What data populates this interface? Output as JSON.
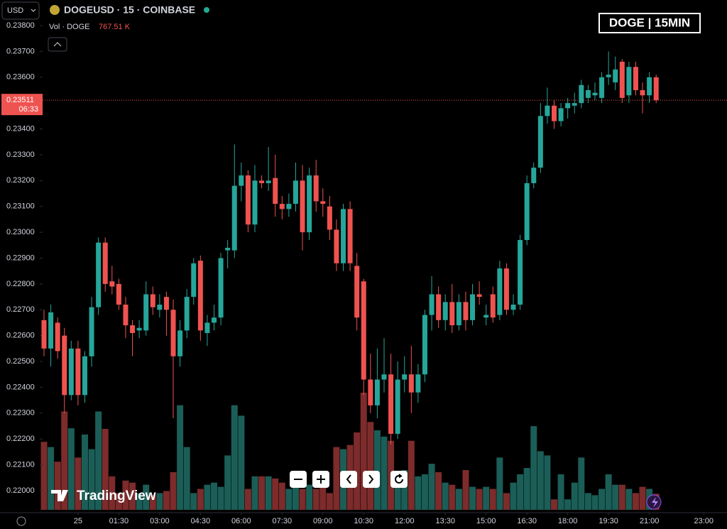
{
  "currency": "USD",
  "symbol": "DOGEUSD · 15 · COINBASE",
  "volume_label": "Vol · DOGE",
  "volume_legend": "767.51 K",
  "brand": "TradingView",
  "countdown": "06:33",
  "chart_data": {
    "type": "candlestick",
    "title": "DOGE | 15MIN",
    "up_color": "#26a69a",
    "down_color": "#ef5350",
    "volume_up_color": "#1b5e57",
    "volume_down_color": "#7d2b2b",
    "current_price": {
      "value": 0.23511,
      "label": "0.23511"
    },
    "open": [
      0.2266,
      0.2255,
      0.2265,
      0.226,
      0.2237,
      0.2255,
      0.2237,
      0.2252,
      0.2271,
      0.2296,
      0.2281,
      0.228,
      0.2272,
      0.2264,
      0.2262,
      0.2262,
      0.2276,
      0.227,
      0.2275,
      0.227,
      0.2252,
      0.2262,
      0.2275,
      0.2289,
      0.2261,
      0.2265,
      0.2267,
      0.2293,
      0.2293,
      0.2318,
      0.2322,
      0.2303,
      0.232,
      0.2319,
      0.2321,
      0.2311,
      0.2309,
      0.2311,
      0.232,
      0.23,
      0.2322,
      0.2312,
      0.231,
      0.2301,
      0.2288,
      0.2309,
      0.2287,
      0.2281,
      0.2243,
      0.2233,
      0.2243,
      0.2245,
      0.2222,
      0.2243,
      0.2245,
      0.2238,
      0.2245,
      0.2268,
      0.2276,
      0.2266,
      0.2273,
      0.2264,
      0.2273,
      0.2266,
      0.2276,
      0.2267,
      0.2276,
      0.2268,
      0.2286,
      0.227,
      0.2272,
      0.2297,
      0.2319,
      0.2325,
      0.2345,
      0.2349,
      0.2343,
      0.2348,
      0.2349,
      0.235,
      0.2352,
      0.2353,
      0.2352,
      0.236,
      0.2358,
      0.2366,
      0.2353,
      0.2364,
      0.2355,
      0.2353,
      0.236
    ],
    "high": [
      0.227,
      0.2272,
      0.2267,
      0.2263,
      0.2258,
      0.2258,
      0.2254,
      0.2275,
      0.2298,
      0.2298,
      0.2287,
      0.2282,
      0.2275,
      0.2266,
      0.2266,
      0.2281,
      0.2279,
      0.2276,
      0.2277,
      0.2274,
      0.2266,
      0.2278,
      0.229,
      0.2291,
      0.2268,
      0.2272,
      0.2292,
      0.2297,
      0.2334,
      0.2327,
      0.2324,
      0.2326,
      0.2322,
      0.2333,
      0.233,
      0.2314,
      0.2315,
      0.2327,
      0.2326,
      0.2325,
      0.2328,
      0.2317,
      0.2314,
      0.2305,
      0.2311,
      0.2312,
      0.2292,
      0.2282,
      0.2253,
      0.2255,
      0.2259,
      0.2253,
      0.225,
      0.2252,
      0.2256,
      0.2249,
      0.227,
      0.2283,
      0.2279,
      0.2276,
      0.228,
      0.2276,
      0.2277,
      0.228,
      0.2281,
      0.2272,
      0.2279,
      0.2289,
      0.2288,
      0.2276,
      0.2299,
      0.2322,
      0.2327,
      0.235,
      0.2356,
      0.2351,
      0.235,
      0.2352,
      0.2354,
      0.2359,
      0.2357,
      0.2358,
      0.2362,
      0.237,
      0.2368,
      0.2367,
      0.2366,
      0.2366,
      0.2358,
      0.2362,
      0.2361
    ],
    "low": [
      0.2252,
      0.2248,
      0.2251,
      0.223,
      0.2235,
      0.2233,
      0.2234,
      0.2248,
      0.2268,
      0.2277,
      0.2276,
      0.227,
      0.2259,
      0.2252,
      0.2259,
      0.226,
      0.2268,
      0.2267,
      0.226,
      0.2228,
      0.2248,
      0.2259,
      0.2272,
      0.2258,
      0.2256,
      0.2262,
      0.2264,
      0.2286,
      0.229,
      0.2312,
      0.23,
      0.23,
      0.2317,
      0.2316,
      0.2306,
      0.2305,
      0.2306,
      0.2308,
      0.2293,
      0.2297,
      0.2308,
      0.2306,
      0.2297,
      0.2285,
      0.2285,
      0.2285,
      0.2262,
      0.2237,
      0.223,
      0.2228,
      0.2238,
      0.2218,
      0.222,
      0.2238,
      0.223,
      0.2234,
      0.2242,
      0.2262,
      0.2263,
      0.2262,
      0.2261,
      0.2262,
      0.2262,
      0.2264,
      0.2272,
      0.2264,
      0.2265,
      0.2266,
      0.2268,
      0.2268,
      0.227,
      0.2295,
      0.2317,
      0.2323,
      0.2342,
      0.234,
      0.2341,
      0.2344,
      0.2346,
      0.2348,
      0.235,
      0.2351,
      0.235,
      0.2357,
      0.2355,
      0.235,
      0.235,
      0.2353,
      0.2346,
      0.235,
      0.235
    ],
    "close": [
      0.2255,
      0.2269,
      0.2254,
      0.2237,
      0.2255,
      0.2237,
      0.2252,
      0.2271,
      0.2296,
      0.228,
      0.2279,
      0.2272,
      0.2264,
      0.2261,
      0.2263,
      0.2276,
      0.2271,
      0.2272,
      0.227,
      0.2252,
      0.2262,
      0.2275,
      0.2288,
      0.2262,
      0.2265,
      0.2267,
      0.229,
      0.2294,
      0.2318,
      0.2322,
      0.2303,
      0.232,
      0.2319,
      0.232,
      0.2311,
      0.2309,
      0.2311,
      0.232,
      0.23,
      0.2322,
      0.2312,
      0.2311,
      0.2301,
      0.2288,
      0.2309,
      0.2288,
      0.2267,
      0.2243,
      0.2233,
      0.2243,
      0.2245,
      0.2222,
      0.2243,
      0.2245,
      0.2238,
      0.2245,
      0.2268,
      0.2276,
      0.2266,
      0.2273,
      0.2264,
      0.2273,
      0.2266,
      0.2276,
      0.2275,
      0.2268,
      0.2267,
      0.2286,
      0.227,
      0.2272,
      0.2297,
      0.2319,
      0.2325,
      0.2345,
      0.2349,
      0.2343,
      0.2348,
      0.235,
      0.235,
      0.2357,
      0.2355,
      0.2354,
      0.236,
      0.2361,
      0.2363,
      0.2352,
      0.2364,
      0.2355,
      0.2353,
      0.236,
      0.23511
    ],
    "volume": [
      3250,
      3000,
      2300,
      4700,
      3900,
      2500,
      3600,
      2900,
      4700,
      3870,
      1600,
      800,
      1400,
      1300,
      800,
      1200,
      700,
      800,
      900,
      1800,
      5000,
      3000,
      800,
      1000,
      1200,
      1300,
      1100,
      2600,
      5000,
      4500,
      1000,
      1600,
      1600,
      1600,
      1500,
      1300,
      1000,
      1100,
      1000,
      1200,
      1000,
      1100,
      800,
      3000,
      2900,
      3100,
      3700,
      5600,
      4200,
      3800,
      3500,
      3300,
      1600,
      1900,
      3300,
      1600,
      1700,
      2200,
      1800,
      1300,
      1200,
      1000,
      1900,
      1100,
      1000,
      1100,
      1000,
      2500,
      800,
      1300,
      1700,
      2000,
      4000,
      2800,
      2600,
      500,
      1700,
      500,
      1300,
      2500,
      800,
      700,
      1000,
      1700,
      1200,
      1200,
      1000,
      800,
      1100,
      1000,
      767.51
    ],
    "ylim": [
      0.22,
      0.238
    ],
    "yticks": [
      {
        "value": 0.22,
        "label": "0.22000"
      },
      {
        "value": 0.221,
        "label": "0.22100"
      },
      {
        "value": 0.222,
        "label": "0.22200"
      },
      {
        "value": 0.223,
        "label": "0.22300"
      },
      {
        "value": 0.224,
        "label": "0.22400"
      },
      {
        "value": 0.225,
        "label": "0.22500"
      },
      {
        "value": 0.226,
        "label": "0.22600"
      },
      {
        "value": 0.227,
        "label": "0.22700"
      },
      {
        "value": 0.228,
        "label": "0.22800"
      },
      {
        "value": 0.229,
        "label": "0.22900"
      },
      {
        "value": 0.23,
        "label": "0.23000"
      },
      {
        "value": 0.231,
        "label": "0.23100"
      },
      {
        "value": 0.232,
        "label": "0.23200"
      },
      {
        "value": 0.233,
        "label": "0.23300"
      },
      {
        "value": 0.234,
        "label": "0.23400"
      },
      {
        "value": 0.235,
        "label": "0.23500"
      },
      {
        "value": 0.236,
        "label": "0.23600"
      },
      {
        "value": 0.237,
        "label": "0.23700"
      },
      {
        "value": 0.238,
        "label": "0.23800"
      }
    ],
    "xticks": [
      {
        "value": 5,
        "label": "25"
      },
      {
        "value": 11,
        "label": "01:30"
      },
      {
        "value": 17,
        "label": "03:00"
      },
      {
        "value": 23,
        "label": "04:30"
      },
      {
        "value": 29,
        "label": "06:00"
      },
      {
        "value": 35,
        "label": "07:30"
      },
      {
        "value": 41,
        "label": "09:00"
      },
      {
        "value": 47,
        "label": "10:30"
      },
      {
        "value": 53,
        "label": "12:00"
      },
      {
        "value": 59,
        "label": "13:30"
      },
      {
        "value": 65,
        "label": "15:00"
      },
      {
        "value": 71,
        "label": "16:30"
      },
      {
        "value": 77,
        "label": "18:00"
      },
      {
        "value": 83,
        "label": "19:30"
      },
      {
        "value": 89,
        "label": "21:00"
      },
      {
        "value": 97,
        "label": "23:00"
      }
    ]
  }
}
